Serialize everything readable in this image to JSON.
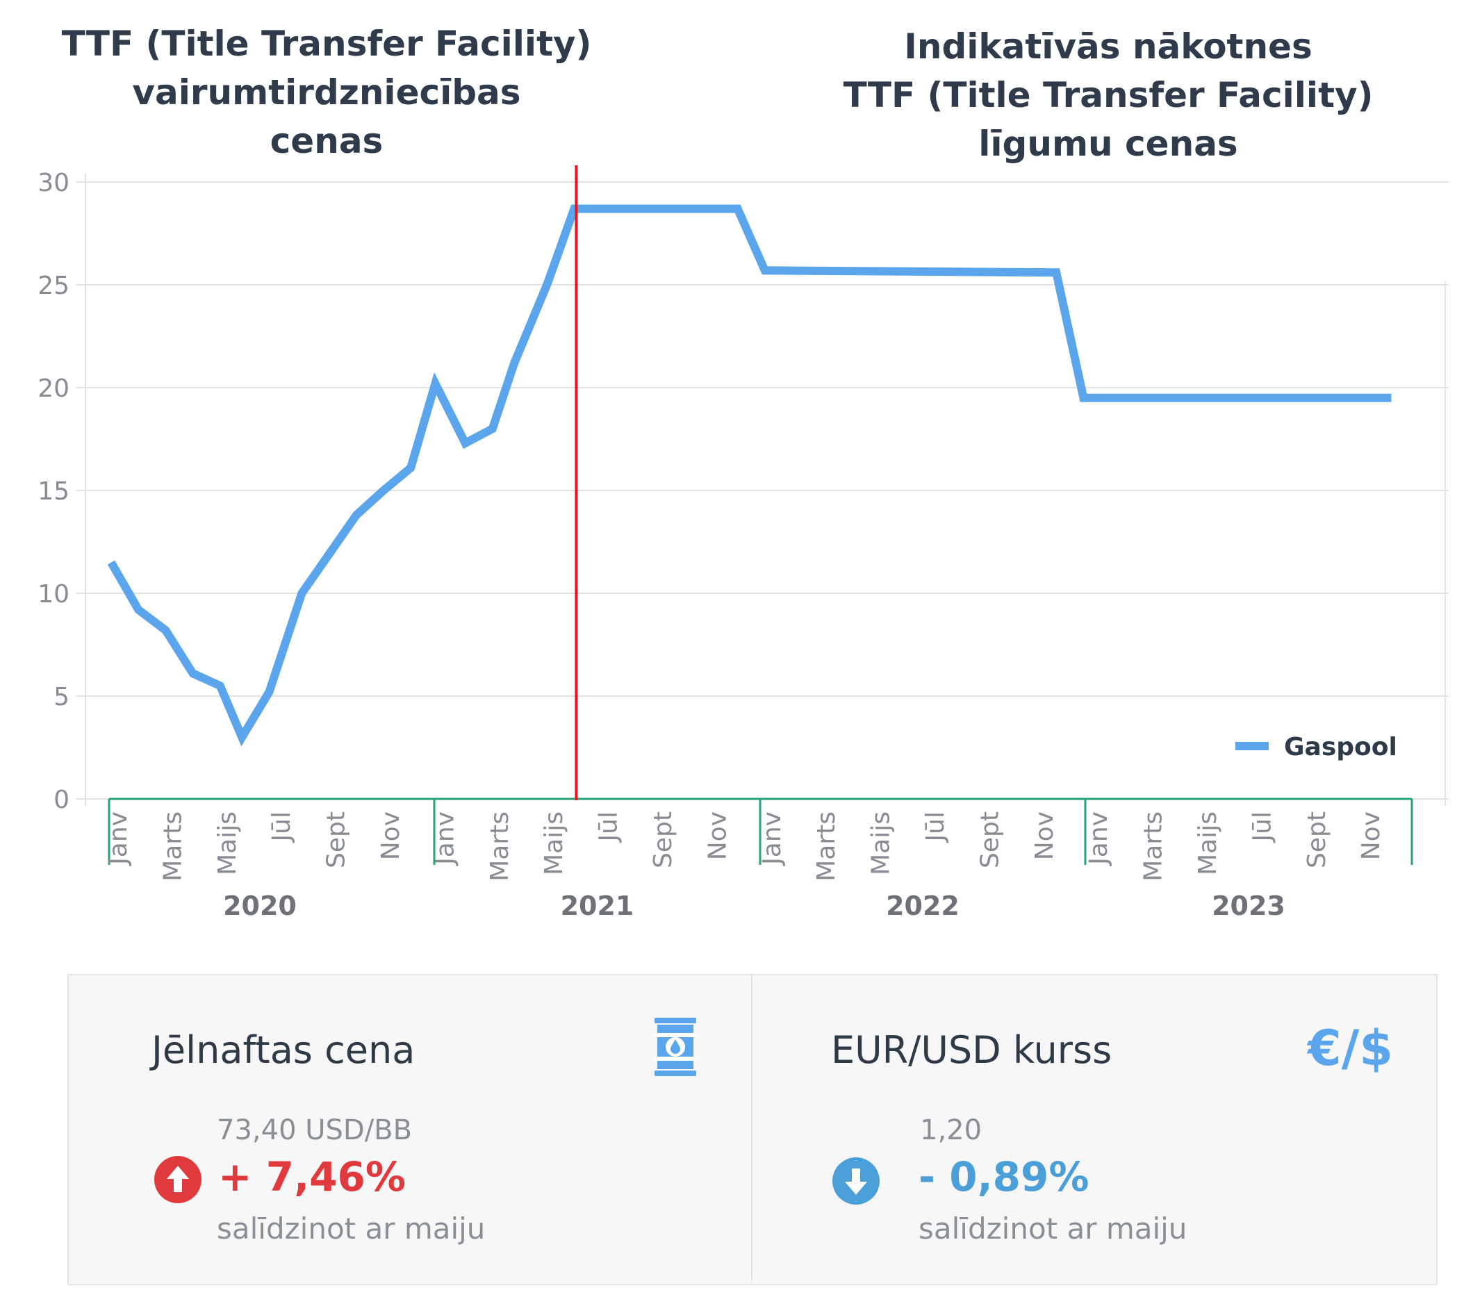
{
  "chart_data": {
    "type": "line",
    "title_left": "TTF (Title Transfer Facility)\nvairumtirdzniecības\ncenas",
    "title_right": "Indikatīvās nākotnes\nTTF (Title Transfer Facility)\nlīgumu cenas",
    "ylim": [
      0,
      30
    ],
    "yticks": [
      0,
      5,
      10,
      15,
      20,
      25,
      30
    ],
    "month_labels": [
      "Janv",
      "Marts",
      "Maijs",
      "Jūl",
      "Sept",
      "Nov"
    ],
    "years": [
      "2020",
      "2021",
      "2022",
      "2023"
    ],
    "series": [
      {
        "name": "Gaspool",
        "color": "#5aa5ec",
        "points": [
          {
            "x": 0,
            "y": 11.5
          },
          {
            "x": 1,
            "y": 9.2
          },
          {
            "x": 2,
            "y": 8.2
          },
          {
            "x": 3,
            "y": 6.1
          },
          {
            "x": 4,
            "y": 5.5
          },
          {
            "x": 4.8,
            "y": 3.0
          },
          {
            "x": 5.8,
            "y": 5.2
          },
          {
            "x": 7,
            "y": 10.0
          },
          {
            "x": 8,
            "y": 11.9
          },
          {
            "x": 9,
            "y": 13.8
          },
          {
            "x": 10,
            "y": 15.0
          },
          {
            "x": 11,
            "y": 16.1
          },
          {
            "x": 11.9,
            "y": 20.2
          },
          {
            "x": 13,
            "y": 17.3
          },
          {
            "x": 14,
            "y": 18.0
          },
          {
            "x": 14.8,
            "y": 21.2
          },
          {
            "x": 16,
            "y": 25.0
          },
          {
            "x": 17,
            "y": 28.7
          },
          {
            "x": 23,
            "y": 28.7
          },
          {
            "x": 24,
            "y": 25.7
          },
          {
            "x": 34.7,
            "y": 25.6
          },
          {
            "x": 35.7,
            "y": 19.5
          },
          {
            "x": 47,
            "y": 19.5
          }
        ]
      }
    ],
    "divider_x": 17,
    "divider_color": "#e8141b",
    "legend": {
      "label": "Gaspool",
      "position": "bottom-right"
    },
    "grid": true
  },
  "cards": {
    "oil": {
      "title": "Jēlnaftas cena",
      "value": "73,40 USD/BB",
      "change": "+ 7,46%",
      "note": "salīdzinot ar maiju",
      "change_color": "#e03a3e",
      "direction": "up",
      "icon": "oil-barrel-icon",
      "icon_color": "#5aa5ec"
    },
    "fx": {
      "title": "EUR/USD kurss",
      "value": "1,20",
      "change": "- 0,89%",
      "note": "salīdzinot ar maiju",
      "change_color": "#4a9fd8",
      "direction": "down",
      "icon_text": "€/$",
      "icon_color": "#5aa5ec"
    }
  }
}
